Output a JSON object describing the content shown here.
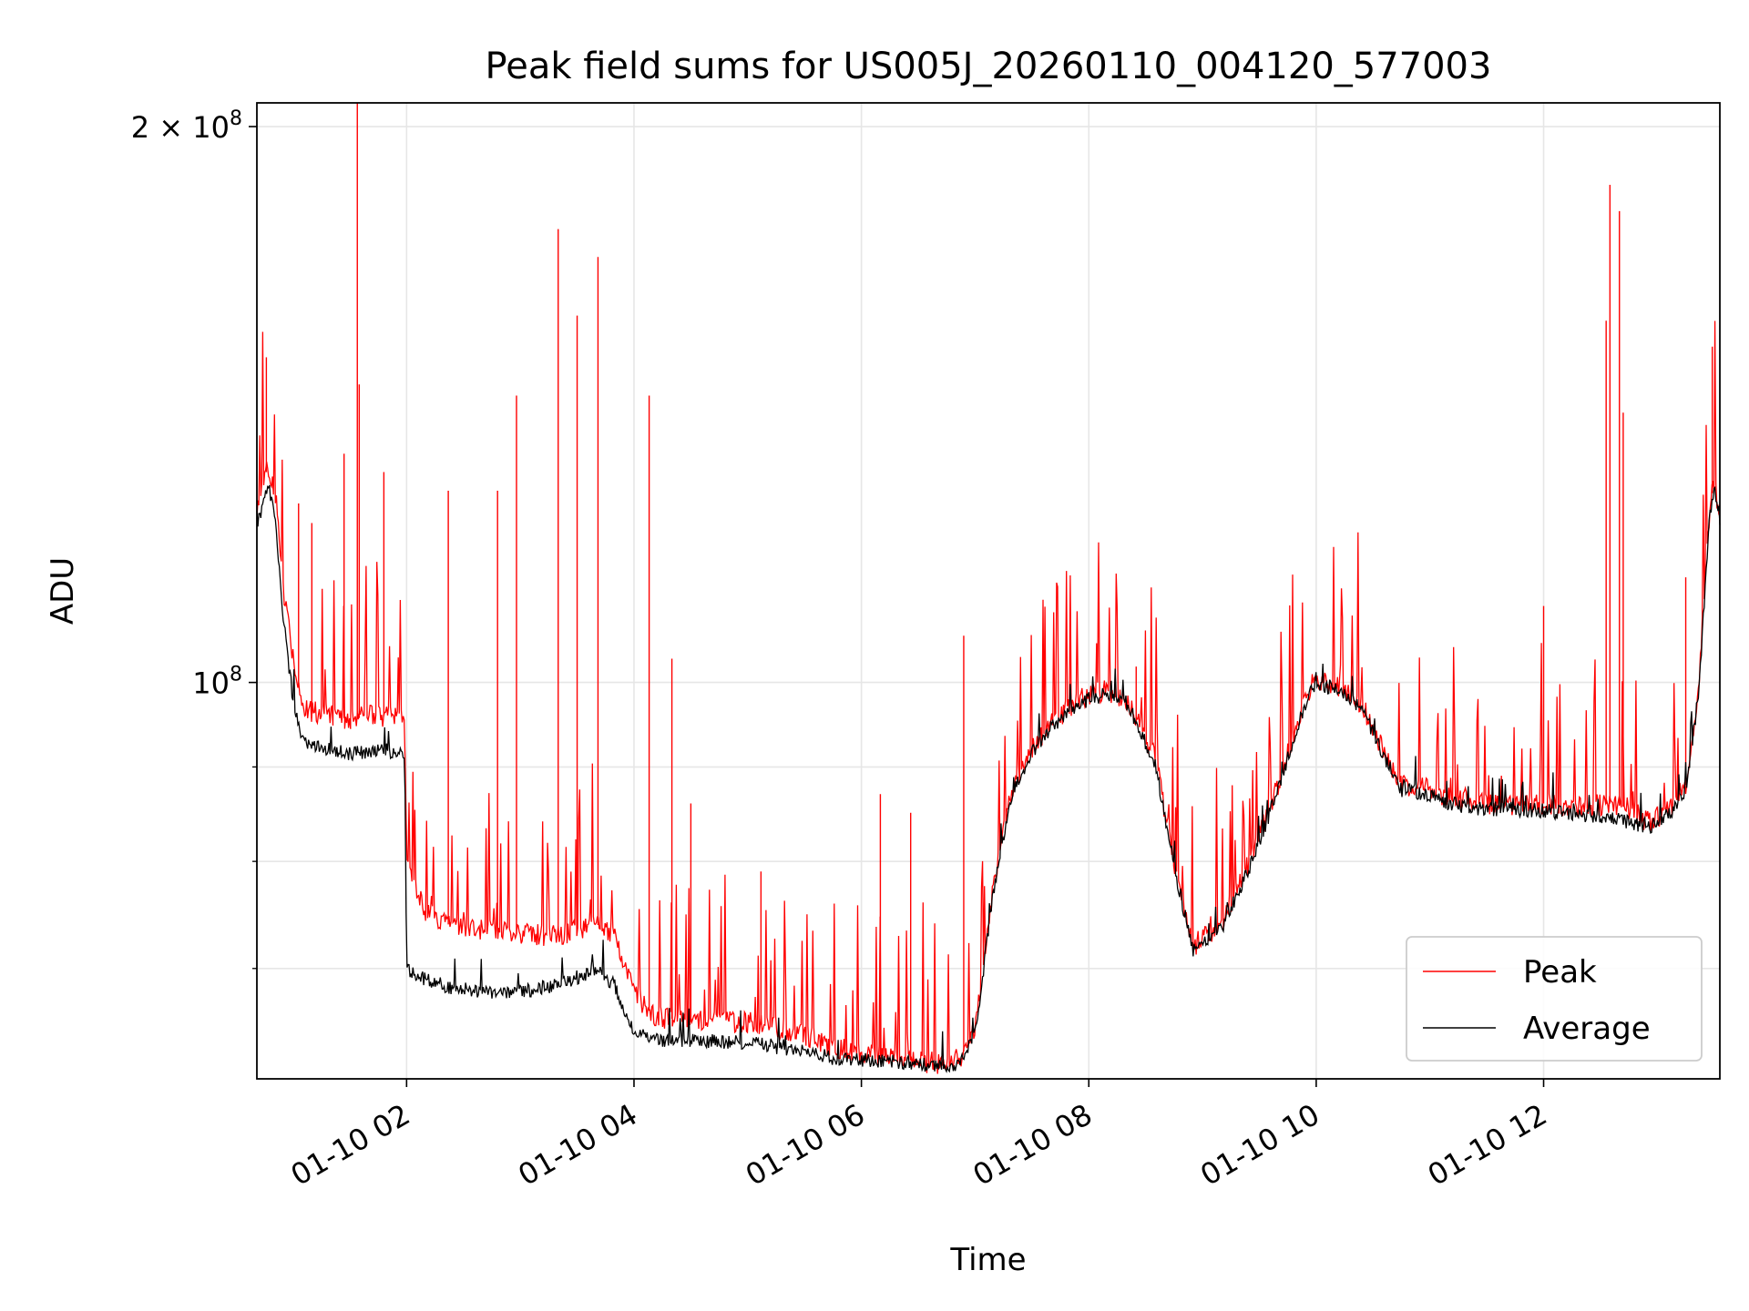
{
  "chart_data": {
    "type": "line",
    "title": "Peak field sums for US005J_20260110_004120_577003",
    "xlabel": "Time",
    "ylabel": "ADU",
    "yscale": "log",
    "xlim": [
      "2026-01-10 00:41",
      "2026-01-10 13:33"
    ],
    "ylim": [
      61000000,
      206000000
    ],
    "grid": true,
    "legend_position": "lower right",
    "x_ticks": [
      "01-10 02",
      "01-10 04",
      "01-10 06",
      "01-10 08",
      "01-10 10",
      "01-10 12"
    ],
    "x_tick_times": [
      "2026-01-10 02:00",
      "2026-01-10 04:00",
      "2026-01-10 06:00",
      "2026-01-10 08:00",
      "2026-01-10 10:00",
      "2026-01-10 12:00"
    ],
    "y_ticks": [
      {
        "value": 200000000,
        "mantissa": "2",
        "times": "×",
        "base": "10",
        "exp": "8"
      },
      {
        "value": 100000000,
        "mantissa": "",
        "times": "",
        "base": "10",
        "exp": "8"
      }
    ],
    "y_minor_ticks": [
      70000000,
      80000000,
      90000000
    ],
    "series": [
      {
        "name": "Peak",
        "color": "#ff0000",
        "x": [
          "2026-01-10 00:41",
          "2026-01-10 00:44",
          "2026-01-10 00:47",
          "2026-01-10 00:51",
          "2026-01-10 00:55",
          "2026-01-10 01:00",
          "2026-01-10 01:05",
          "2026-01-10 01:10",
          "2026-01-10 01:20",
          "2026-01-10 01:30",
          "2026-01-10 01:45",
          "2026-01-10 01:59",
          "2026-01-10 02:00",
          "2026-01-10 02:10",
          "2026-01-10 02:20",
          "2026-01-10 02:40",
          "2026-01-10 03:00",
          "2026-01-10 03:20",
          "2026-01-10 03:40",
          "2026-01-10 03:50",
          "2026-01-10 04:00",
          "2026-01-10 04:10",
          "2026-01-10 04:30",
          "2026-01-10 05:00",
          "2026-01-10 05:15",
          "2026-01-10 05:30",
          "2026-01-10 05:45",
          "2026-01-10 06:00",
          "2026-01-10 06:20",
          "2026-01-10 06:40",
          "2026-01-10 06:52",
          "2026-01-10 07:00",
          "2026-01-10 07:10",
          "2026-01-10 07:20",
          "2026-01-10 07:30",
          "2026-01-10 07:40",
          "2026-01-10 07:50",
          "2026-01-10 08:00",
          "2026-01-10 08:10",
          "2026-01-10 08:20",
          "2026-01-10 08:35",
          "2026-01-10 08:45",
          "2026-01-10 08:55",
          "2026-01-10 09:10",
          "2026-01-10 09:25",
          "2026-01-10 09:40",
          "2026-01-10 09:50",
          "2026-01-10 09:58",
          "2026-01-10 10:10",
          "2026-01-10 10:25",
          "2026-01-10 10:35",
          "2026-01-10 10:45",
          "2026-01-10 11:00",
          "2026-01-10 11:10",
          "2026-01-10 11:25",
          "2026-01-10 11:45",
          "2026-01-10 12:00",
          "2026-01-10 12:20",
          "2026-01-10 12:35",
          "2026-01-10 12:45",
          "2026-01-10 12:55",
          "2026-01-10 13:05",
          "2026-01-10 13:15",
          "2026-01-10 13:22",
          "2026-01-10 13:27",
          "2026-01-10 13:30",
          "2026-01-10 13:33"
        ],
        "y": [
          124000000,
          128000000,
          131000000,
          126000000,
          112000000,
          103000000,
          97000000,
          96500000,
          96000000,
          95500000,
          96000000,
          95500000,
          80000000,
          75000000,
          74000000,
          73500000,
          73000000,
          73000000,
          74000000,
          73000000,
          68000000,
          66000000,
          65500000,
          65500000,
          65000000,
          64500000,
          63500000,
          63000000,
          62500000,
          62200000,
          62500000,
          65000000,
          78000000,
          88000000,
          92000000,
          95000000,
          97000000,
          98500000,
          99000000,
          98000000,
          91000000,
          80000000,
          72000000,
          74000000,
          80000000,
          88000000,
          95000000,
          100000000,
          100000000,
          97000000,
          92000000,
          88000000,
          87500000,
          86500000,
          86000000,
          85800000,
          86000000,
          85500000,
          86000000,
          85500000,
          84000000,
          85000000,
          88000000,
          100000000,
          122000000,
          129000000,
          122000000
        ],
        "spikes": [
          {
            "x": "2026-01-10 00:46",
            "y": 150000000
          },
          {
            "x": "2026-01-10 01:03",
            "y": 125000000
          },
          {
            "x": "2026-01-10 01:10",
            "y": 122000000
          },
          {
            "x": "2026-01-10 01:27",
            "y": 133000000
          },
          {
            "x": "2026-01-10 01:34",
            "y": 206000000
          },
          {
            "x": "2026-01-10 01:35",
            "y": 145000000
          },
          {
            "x": "2026-01-10 01:48",
            "y": 130000000
          },
          {
            "x": "2026-01-10 02:22",
            "y": 127000000
          },
          {
            "x": "2026-01-10 02:48",
            "y": 127000000
          },
          {
            "x": "2026-01-10 02:58",
            "y": 143000000
          },
          {
            "x": "2026-01-10 03:20",
            "y": 176000000
          },
          {
            "x": "2026-01-10 03:30",
            "y": 158000000
          },
          {
            "x": "2026-01-10 03:41",
            "y": 170000000
          },
          {
            "x": "2026-01-10 04:08",
            "y": 143000000
          },
          {
            "x": "2026-01-10 04:20",
            "y": 103000000
          },
          {
            "x": "2026-01-10 04:30",
            "y": 86000000
          },
          {
            "x": "2026-01-10 05:07",
            "y": 79000000
          },
          {
            "x": "2026-01-10 06:10",
            "y": 87000000
          },
          {
            "x": "2026-01-10 06:26",
            "y": 85000000
          },
          {
            "x": "2026-01-10 06:54",
            "y": 106000000
          },
          {
            "x": "2026-01-10 08:25",
            "y": 102000000
          },
          {
            "x": "2026-01-10 12:00",
            "y": 110000000
          },
          {
            "x": "2026-01-10 12:33",
            "y": 157000000
          },
          {
            "x": "2026-01-10 12:35",
            "y": 186000000
          },
          {
            "x": "2026-01-10 12:40",
            "y": 180000000
          },
          {
            "x": "2026-01-10 12:42",
            "y": 140000000
          },
          {
            "x": "2026-01-10 13:15",
            "y": 114000000
          },
          {
            "x": "2026-01-10 13:29",
            "y": 152000000
          }
        ]
      },
      {
        "name": "Average",
        "color": "#000000",
        "x": [
          "2026-01-10 00:41",
          "2026-01-10 00:44",
          "2026-01-10 00:47",
          "2026-01-10 00:51",
          "2026-01-10 00:55",
          "2026-01-10 01:00",
          "2026-01-10 01:05",
          "2026-01-10 01:10",
          "2026-01-10 01:20",
          "2026-01-10 01:30",
          "2026-01-10 01:45",
          "2026-01-10 01:59",
          "2026-01-10 02:00",
          "2026-01-10 02:10",
          "2026-01-10 02:20",
          "2026-01-10 02:40",
          "2026-01-10 03:00",
          "2026-01-10 03:20",
          "2026-01-10 03:40",
          "2026-01-10 03:50",
          "2026-01-10 04:00",
          "2026-01-10 04:10",
          "2026-01-10 04:30",
          "2026-01-10 05:00",
          "2026-01-10 05:15",
          "2026-01-10 05:30",
          "2026-01-10 05:45",
          "2026-01-10 06:00",
          "2026-01-10 06:20",
          "2026-01-10 06:40",
          "2026-01-10 06:52",
          "2026-01-10 07:00",
          "2026-01-10 07:10",
          "2026-01-10 07:20",
          "2026-01-10 07:30",
          "2026-01-10 07:40",
          "2026-01-10 07:50",
          "2026-01-10 08:00",
          "2026-01-10 08:10",
          "2026-01-10 08:20",
          "2026-01-10 08:35",
          "2026-01-10 08:45",
          "2026-01-10 08:55",
          "2026-01-10 09:10",
          "2026-01-10 09:25",
          "2026-01-10 09:40",
          "2026-01-10 09:50",
          "2026-01-10 09:58",
          "2026-01-10 10:10",
          "2026-01-10 10:25",
          "2026-01-10 10:35",
          "2026-01-10 10:45",
          "2026-01-10 11:00",
          "2026-01-10 11:10",
          "2026-01-10 11:25",
          "2026-01-10 11:45",
          "2026-01-10 12:00",
          "2026-01-10 12:20",
          "2026-01-10 12:35",
          "2026-01-10 12:45",
          "2026-01-10 12:55",
          "2026-01-10 13:05",
          "2026-01-10 13:15",
          "2026-01-10 13:22",
          "2026-01-10 13:27",
          "2026-01-10 13:30",
          "2026-01-10 13:33"
        ],
        "y": [
          121000000,
          125000000,
          128000000,
          122000000,
          108000000,
          98000000,
          93000000,
          92500000,
          92000000,
          91500000,
          92000000,
          91500000,
          70000000,
          69000000,
          68500000,
          68000000,
          68000000,
          68500000,
          70000000,
          68500000,
          64500000,
          64000000,
          64000000,
          63800000,
          63500000,
          63200000,
          62600000,
          62500000,
          62300000,
          62000000,
          62200000,
          64500000,
          77500000,
          87500000,
          91500000,
          94500000,
          96500000,
          98000000,
          98500000,
          97500000,
          90500000,
          79500000,
          71500000,
          73500000,
          79500000,
          87500000,
          94500000,
          99500000,
          99500000,
          96500000,
          91500000,
          87500000,
          87000000,
          86000000,
          85500000,
          85300000,
          85200000,
          84800000,
          84500000,
          84000000,
          83500000,
          84500000,
          87500000,
          99000000,
          121000000,
          128000000,
          121000000
        ]
      }
    ]
  }
}
